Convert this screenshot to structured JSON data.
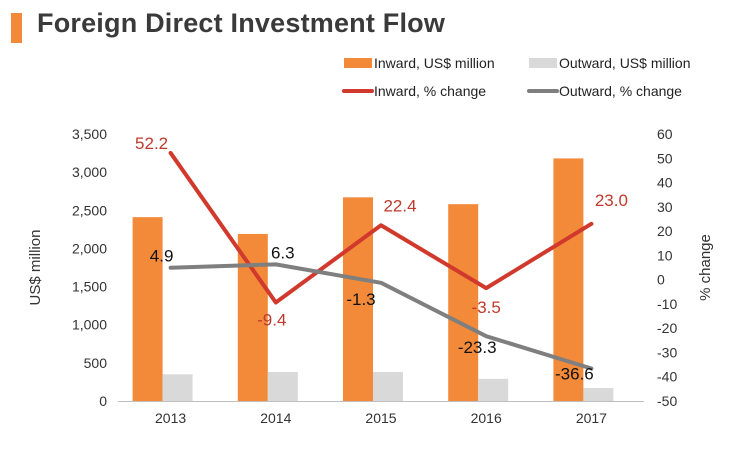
{
  "title": "Foreign Direct Investment Flow",
  "colors": {
    "inward_bar": "#f28a3a",
    "outward_bar": "#d9d9d9",
    "inward_line": "#d0392b",
    "outward_line": "#7f7f7f",
    "inward_label": "#c0392b",
    "outward_label": "#111111"
  },
  "chart_data": {
    "type": "bar",
    "categories": [
      "2013",
      "2014",
      "2015",
      "2016",
      "2017"
    ],
    "series": [
      {
        "name": "Inward, US$ million",
        "kind": "bar",
        "axis": "left",
        "values": [
          2410,
          2190,
          2670,
          2580,
          3180
        ]
      },
      {
        "name": "Outward, US$ million",
        "kind": "bar",
        "axis": "left",
        "values": [
          350,
          380,
          380,
          290,
          170
        ]
      },
      {
        "name": "Inward, % change",
        "kind": "line",
        "axis": "right",
        "values": [
          52.2,
          -9.4,
          22.4,
          -3.5,
          23.0
        ],
        "labels": [
          "52.2",
          "-9.4",
          "22.4",
          "-3.5",
          "23.0"
        ]
      },
      {
        "name": "Outward, % change",
        "kind": "line",
        "axis": "right",
        "values": [
          4.9,
          6.3,
          -1.3,
          -23.3,
          -36.6
        ],
        "labels": [
          "4.9",
          "6.3",
          "-1.3",
          "-23.3",
          "-36.6"
        ]
      }
    ],
    "ylabel": "US$ million",
    "y2label": "% change",
    "ylim": [
      0,
      3500
    ],
    "y2lim": [
      -50,
      60
    ],
    "yticks": [
      "0",
      "500",
      "1,000",
      "1,500",
      "2,000",
      "2,500",
      "3,000",
      "3,500"
    ],
    "y2ticks": [
      "-50",
      "-40",
      "-30",
      "-20",
      "-10",
      "0",
      "10",
      "20",
      "30",
      "40",
      "50",
      "60"
    ],
    "legend": [
      "Inward, US$ million",
      "Outward, US$ million",
      "Inward, % change",
      "Outward, % change"
    ],
    "legend_position": "top-right",
    "grid": false
  }
}
